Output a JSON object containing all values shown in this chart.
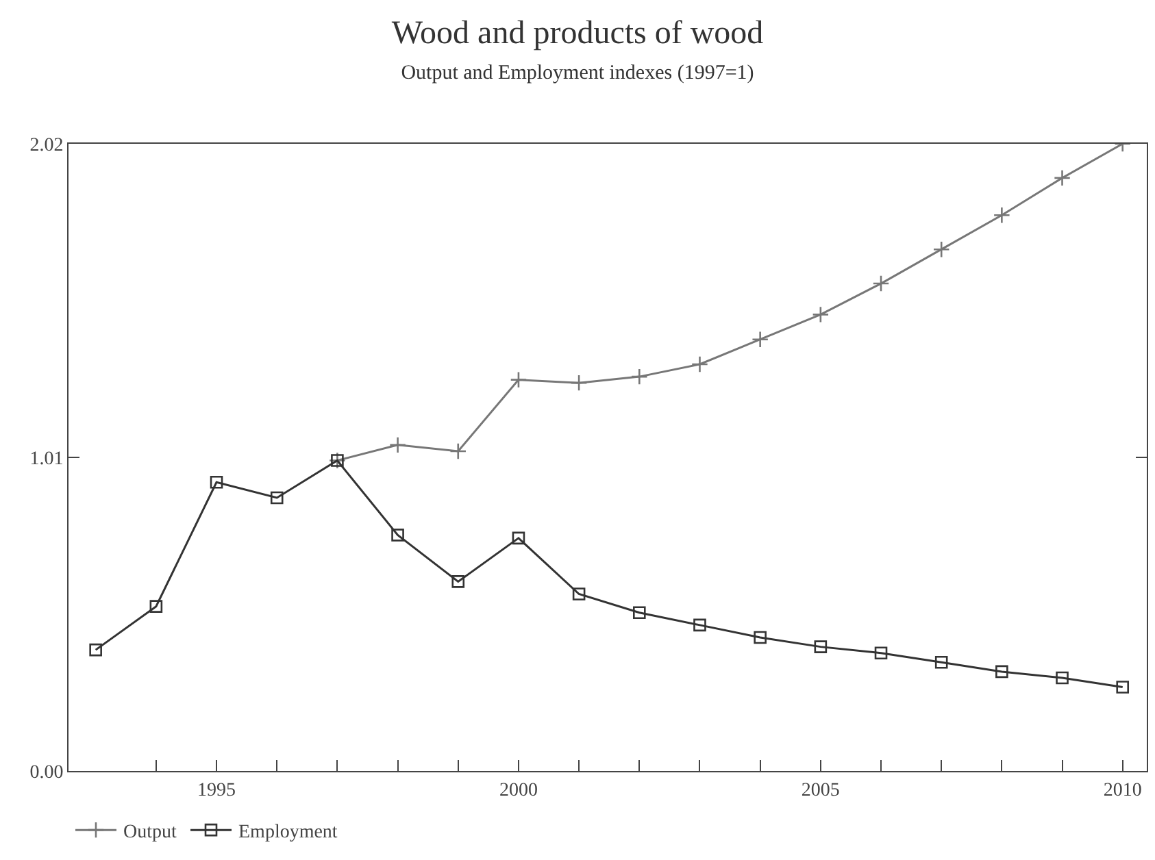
{
  "chart_data": {
    "type": "line",
    "title": "Wood and products of wood",
    "subtitle": "Output and Employment indexes (1997=1)",
    "x": [
      1993,
      1994,
      1995,
      1996,
      1997,
      1998,
      1999,
      2000,
      2001,
      2002,
      2003,
      2004,
      2005,
      2006,
      2007,
      2008,
      2009,
      2010
    ],
    "series": [
      {
        "name": "Output",
        "color": "#777777",
        "marker": "cross",
        "values": [
          null,
          null,
          null,
          null,
          1.0,
          1.05,
          1.03,
          1.26,
          1.25,
          1.27,
          1.31,
          1.39,
          1.47,
          1.57,
          1.68,
          1.79,
          1.91,
          2.02
        ]
      },
      {
        "name": "Employment",
        "color": "#333333",
        "marker": "square",
        "values": [
          0.39,
          0.53,
          0.93,
          0.88,
          1.0,
          0.76,
          0.61,
          0.75,
          0.57,
          0.51,
          0.47,
          0.43,
          0.4,
          0.38,
          0.35,
          0.32,
          0.3,
          0.27
        ]
      }
    ],
    "xlim": [
      1992.55,
      2010.4
    ],
    "xticks": [
      {
        "value": 1994,
        "label": null
      },
      1995,
      {
        "value": 1996,
        "label": null
      },
      {
        "value": 1997,
        "label": null
      },
      {
        "value": 1998,
        "label": null
      },
      {
        "value": 1999,
        "label": null
      },
      2000,
      {
        "value": 2001,
        "label": null
      },
      {
        "value": 2002,
        "label": null
      },
      {
        "value": 2003,
        "label": null
      },
      {
        "value": 2004,
        "label": null
      },
      2005,
      {
        "value": 2006,
        "label": null
      },
      {
        "value": 2007,
        "label": null
      },
      {
        "value": 2008,
        "label": null
      },
      {
        "value": 2009,
        "label": null
      },
      2010
    ],
    "ylim": [
      0,
      2.02
    ],
    "yticks": [
      {
        "value": 0,
        "label": "0.00"
      },
      1.01,
      2.02
    ],
    "legend": "bottom left",
    "line_style": "solid"
  }
}
